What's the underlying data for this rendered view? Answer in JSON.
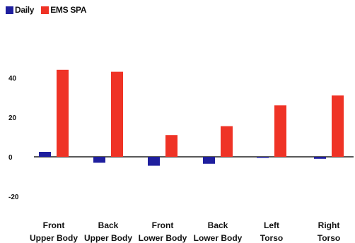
{
  "chart_data": {
    "type": "bar",
    "categories": [
      [
        "Front",
        "Upper Body"
      ],
      [
        "Back",
        "Upper Body"
      ],
      [
        "Front",
        "Lower Body"
      ],
      [
        "Back",
        "Lower Body"
      ],
      [
        "Left",
        "Torso"
      ],
      [
        "Right",
        "Torso"
      ]
    ],
    "series": [
      {
        "name": "Daily",
        "color": "#1f1f9e",
        "values": [
          2.5,
          -3,
          -4.5,
          -3.5,
          -0.5,
          -1
        ]
      },
      {
        "name": "EMS SPA",
        "color": "#ef3326",
        "values": [
          44,
          43,
          11,
          15.5,
          26,
          31
        ]
      }
    ],
    "yticks": [
      40,
      20,
      0,
      -20
    ],
    "ylim": [
      -25,
      50
    ],
    "legend_position": "top-left",
    "grid": false
  }
}
